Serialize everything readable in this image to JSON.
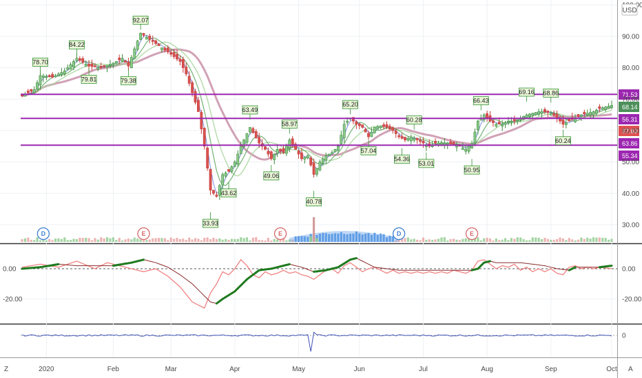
{
  "chart_data": [
    {
      "type": "candlestick",
      "currency": "USD",
      "ylim": [
        26,
        100
      ],
      "y_ticks": [
        30,
        40,
        50,
        60,
        70,
        80,
        90,
        100
      ],
      "y_tick_labels": [
        "30.00",
        "40.00",
        "50.00",
        "60.00",
        "70.00",
        "80.00",
        "90.00",
        "100.00"
      ],
      "x_ticks": [
        "2020",
        "Feb",
        "Mar",
        "Apr",
        "May",
        "Jun",
        "Jul",
        "Aug",
        "Sep",
        "Oct"
      ],
      "horizontal_lines": [
        71.53,
        63.86,
        55.34
      ],
      "line_color": "#9c27b0",
      "price_tags": [
        {
          "value": 71.53,
          "label": "71.53",
          "color": "#9c27b0"
        },
        {
          "value": 68.14,
          "label": "68.14",
          "color": "#4c8f5a"
        },
        {
          "value": 66.31,
          "label": "56.31",
          "color": "#9c27b0"
        },
        {
          "value": 63.86,
          "label": "67.60",
          "color": "#e05050"
        },
        {
          "value": 58.0,
          "label": "63.86",
          "color": "#9c27b0"
        },
        {
          "value": 55.34,
          "label": "55.34",
          "color": "#9c27b0"
        }
      ],
      "peak_labels": [
        {
          "day": 6,
          "value": 78.7,
          "label": "78.70",
          "pos": "above"
        },
        {
          "day": 18,
          "value": 84.22,
          "label": "84.22",
          "pos": "above"
        },
        {
          "day": 22,
          "value": 79.81,
          "label": "79.81",
          "pos": "below"
        },
        {
          "day": 35,
          "value": 79.38,
          "label": "79.38",
          "pos": "below"
        },
        {
          "day": 39,
          "value": 92.07,
          "label": "92.07",
          "pos": "above"
        },
        {
          "day": 62,
          "value": 33.93,
          "label": "33.93",
          "pos": "below"
        },
        {
          "day": 68,
          "value": 43.62,
          "label": "43.62",
          "pos": "below"
        },
        {
          "day": 75,
          "value": 63.49,
          "label": "63.49",
          "pos": "above"
        },
        {
          "day": 82,
          "value": 49.06,
          "label": "49.06",
          "pos": "below"
        },
        {
          "day": 88,
          "value": 58.97,
          "label": "58.97",
          "pos": "above"
        },
        {
          "day": 96,
          "value": 40.78,
          "label": "40.78",
          "pos": "below"
        },
        {
          "day": 108,
          "value": 65.2,
          "label": "65.20",
          "pos": "above"
        },
        {
          "day": 114,
          "value": 57.04,
          "label": "57.04",
          "pos": "below"
        },
        {
          "day": 125,
          "value": 54.36,
          "label": "54.36",
          "pos": "below"
        },
        {
          "day": 129,
          "value": 60.28,
          "label": "60.28",
          "pos": "above"
        },
        {
          "day": 133,
          "value": 53.01,
          "label": "53.01",
          "pos": "below"
        },
        {
          "day": 148,
          "value": 50.95,
          "label": "50.95",
          "pos": "below"
        },
        {
          "day": 151,
          "value": 66.43,
          "label": "66.43",
          "pos": "above"
        },
        {
          "day": 166,
          "value": 69.16,
          "label": "69.16",
          "pos": "above"
        },
        {
          "day": 174,
          "value": 68.86,
          "label": "68.86",
          "pos": "above"
        },
        {
          "day": 178,
          "value": 60.24,
          "label": "60.24",
          "pos": "below"
        }
      ],
      "event_markers": [
        {
          "day": 7,
          "letter": "D",
          "kind": "dividend"
        },
        {
          "day": 40,
          "letter": "E",
          "kind": "earnings"
        },
        {
          "day": 85,
          "letter": "E",
          "kind": "earnings"
        },
        {
          "day": 124,
          "letter": "D",
          "kind": "dividend"
        },
        {
          "day": 148,
          "letter": "E",
          "kind": "earnings"
        }
      ],
      "close_anchors": [
        [
          0,
          71
        ],
        [
          4,
          73
        ],
        [
          6,
          77.5
        ],
        [
          10,
          77
        ],
        [
          14,
          79
        ],
        [
          18,
          83
        ],
        [
          22,
          80.5
        ],
        [
          26,
          80
        ],
        [
          30,
          81.5
        ],
        [
          33,
          83
        ],
        [
          35,
          80.5
        ],
        [
          37,
          86
        ],
        [
          39,
          91
        ],
        [
          42,
          89
        ],
        [
          45,
          87
        ],
        [
          48,
          85
        ],
        [
          52,
          82
        ],
        [
          54,
          78
        ],
        [
          56,
          72
        ],
        [
          58,
          66
        ],
        [
          60,
          55
        ],
        [
          62,
          41
        ],
        [
          64,
          39
        ],
        [
          66,
          46
        ],
        [
          68,
          47
        ],
        [
          70,
          50
        ],
        [
          72,
          55
        ],
        [
          75,
          61
        ],
        [
          78,
          56
        ],
        [
          80,
          54
        ],
        [
          82,
          51
        ],
        [
          84,
          54
        ],
        [
          86,
          53
        ],
        [
          88,
          57
        ],
        [
          90,
          54
        ],
        [
          92,
          51
        ],
        [
          94,
          52
        ],
        [
          96,
          46
        ],
        [
          98,
          50
        ],
        [
          100,
          52
        ],
        [
          102,
          53
        ],
        [
          104,
          55
        ],
        [
          106,
          62
        ],
        [
          108,
          64
        ],
        [
          110,
          62
        ],
        [
          112,
          61
        ],
        [
          114,
          58
        ],
        [
          116,
          61
        ],
        [
          118,
          61.5
        ],
        [
          120,
          61
        ],
        [
          122,
          60
        ],
        [
          124,
          58
        ],
        [
          126,
          57
        ],
        [
          128,
          58
        ],
        [
          130,
          57
        ],
        [
          132,
          56
        ],
        [
          134,
          55
        ],
        [
          136,
          56
        ],
        [
          138,
          56
        ],
        [
          140,
          56
        ],
        [
          142,
          55.5
        ],
        [
          144,
          55
        ],
        [
          146,
          54
        ],
        [
          148,
          56
        ],
        [
          150,
          63
        ],
        [
          152,
          65
        ],
        [
          154,
          63
        ],
        [
          156,
          62
        ],
        [
          158,
          62
        ],
        [
          160,
          63
        ],
        [
          162,
          63
        ],
        [
          164,
          64
        ],
        [
          166,
          65
        ],
        [
          168,
          65.5
        ],
        [
          170,
          66
        ],
        [
          172,
          66
        ],
        [
          174,
          65.5
        ],
        [
          176,
          64
        ],
        [
          178,
          62
        ],
        [
          180,
          63
        ],
        [
          182,
          64
        ],
        [
          184,
          65
        ],
        [
          186,
          65.5
        ],
        [
          188,
          66
        ],
        [
          190,
          67
        ],
        [
          192,
          67.5
        ],
        [
          194,
          68
        ]
      ],
      "volume": {
        "y_ticks": [],
        "spikes": [
          [
            95,
            9
          ],
          [
            96,
            40
          ],
          [
            97,
            6
          ]
        ]
      },
      "series": [
        {
          "name": "",
          "kind": "ema",
          "color": "#6a7bd8"
        },
        {
          "name": "",
          "kind": "sma_fast",
          "color": "#5aa35a"
        },
        {
          "name": "",
          "kind": "sma_mid",
          "color": "#a6d39a"
        },
        {
          "name": "",
          "kind": "sma_slow",
          "color": "#c990a8"
        }
      ]
    },
    {
      "type": "line",
      "panel": "oscillator",
      "ylim": [
        -28,
        12
      ],
      "y_ticks": [
        0,
        -20
      ],
      "y_tick_labels": [
        "0.00",
        "-20.00"
      ],
      "right_tick_labels": [
        "0.00",
        "-20.00"
      ],
      "zero_line": true,
      "series": [
        {
          "name": "",
          "color": "#f08080",
          "anchors": [
            [
              0,
              1
            ],
            [
              6,
              3
            ],
            [
              12,
              1
            ],
            [
              18,
              5
            ],
            [
              24,
              0
            ],
            [
              28,
              4
            ],
            [
              34,
              1
            ],
            [
              40,
              -2
            ],
            [
              44,
              0
            ],
            [
              48,
              -5
            ],
            [
              52,
              -12
            ],
            [
              56,
              -22
            ],
            [
              58,
              -24
            ],
            [
              60,
              -26
            ],
            [
              62,
              -16
            ],
            [
              64,
              -10
            ],
            [
              66,
              -2
            ],
            [
              68,
              -4
            ],
            [
              70,
              0
            ],
            [
              72,
              6
            ],
            [
              74,
              2
            ],
            [
              76,
              -4
            ],
            [
              78,
              -6
            ],
            [
              80,
              -2
            ],
            [
              82,
              -4
            ],
            [
              84,
              -3
            ],
            [
              86,
              -1
            ],
            [
              88,
              -3
            ],
            [
              90,
              -2
            ],
            [
              92,
              -4
            ],
            [
              94,
              -5
            ],
            [
              96,
              -7
            ],
            [
              98,
              -4
            ],
            [
              100,
              -1
            ],
            [
              102,
              0
            ],
            [
              104,
              -3
            ],
            [
              106,
              2
            ],
            [
              108,
              4
            ],
            [
              110,
              1
            ],
            [
              112,
              -2
            ],
            [
              114,
              0
            ],
            [
              116,
              1
            ],
            [
              118,
              -1
            ],
            [
              120,
              -3
            ],
            [
              122,
              -1
            ],
            [
              124,
              -3
            ],
            [
              126,
              -2
            ],
            [
              128,
              -3
            ],
            [
              130,
              -2
            ],
            [
              132,
              -3
            ],
            [
              134,
              -2
            ],
            [
              136,
              -3
            ],
            [
              138,
              -2
            ],
            [
              140,
              -3
            ],
            [
              142,
              -1
            ],
            [
              144,
              -2
            ],
            [
              146,
              -3
            ],
            [
              148,
              -1
            ],
            [
              150,
              5
            ],
            [
              152,
              6
            ],
            [
              154,
              3
            ],
            [
              156,
              0
            ],
            [
              158,
              2
            ],
            [
              160,
              1
            ],
            [
              162,
              3
            ],
            [
              164,
              -1
            ],
            [
              166,
              1
            ],
            [
              168,
              -2
            ],
            [
              170,
              0
            ],
            [
              172,
              -2
            ],
            [
              174,
              0
            ],
            [
              176,
              -3
            ],
            [
              178,
              -4
            ],
            [
              180,
              1
            ],
            [
              182,
              2
            ],
            [
              184,
              0
            ],
            [
              186,
              1
            ],
            [
              188,
              0
            ],
            [
              190,
              1
            ],
            [
              194,
              0
            ]
          ]
        },
        {
          "name": "",
          "color": "#8b2a2a",
          "thick_color": "#1f7a1f",
          "anchors": [
            [
              0,
              0
            ],
            [
              6,
              1
            ],
            [
              12,
              3
            ],
            [
              18,
              2
            ],
            [
              24,
              2
            ],
            [
              30,
              2
            ],
            [
              36,
              4
            ],
            [
              40,
              6
            ],
            [
              44,
              4
            ],
            [
              48,
              1
            ],
            [
              52,
              -4
            ],
            [
              56,
              -10
            ],
            [
              60,
              -18
            ],
            [
              62,
              -22
            ],
            [
              64,
              -23
            ],
            [
              66,
              -20
            ],
            [
              70,
              -15
            ],
            [
              74,
              -7
            ],
            [
              78,
              -1
            ],
            [
              82,
              0
            ],
            [
              86,
              2
            ],
            [
              88,
              3
            ],
            [
              92,
              1
            ],
            [
              96,
              -2
            ],
            [
              100,
              -1
            ],
            [
              104,
              1
            ],
            [
              108,
              6
            ],
            [
              110,
              7
            ],
            [
              112,
              5
            ],
            [
              116,
              1
            ],
            [
              120,
              0
            ],
            [
              124,
              -1
            ],
            [
              128,
              -1
            ],
            [
              132,
              -1
            ],
            [
              136,
              -1
            ],
            [
              140,
              -1
            ],
            [
              144,
              -1
            ],
            [
              148,
              -1
            ],
            [
              150,
              0
            ],
            [
              152,
              4
            ],
            [
              154,
              5
            ],
            [
              156,
              4
            ],
            [
              160,
              4
            ],
            [
              164,
              4
            ],
            [
              168,
              3
            ],
            [
              172,
              2
            ],
            [
              176,
              0
            ],
            [
              180,
              -1
            ],
            [
              182,
              1
            ],
            [
              186,
              1
            ],
            [
              190,
              1
            ],
            [
              194,
              2
            ]
          ]
        }
      ]
    },
    {
      "type": "line",
      "panel": "momentum",
      "ylim": [
        -6,
        6
      ],
      "y_ticks": [
        0
      ],
      "y_tick_labels": [
        "0"
      ],
      "series": [
        {
          "name": "",
          "color": "#3f51b5",
          "anchors": [
            [
              0,
              0
            ],
            [
              94,
              0
            ],
            [
              95,
              -5
            ],
            [
              96,
              1
            ],
            [
              97,
              0
            ],
            [
              194,
              0
            ]
          ]
        }
      ]
    }
  ],
  "axis": {
    "left_letter": "Z",
    "right_letter": "A"
  }
}
